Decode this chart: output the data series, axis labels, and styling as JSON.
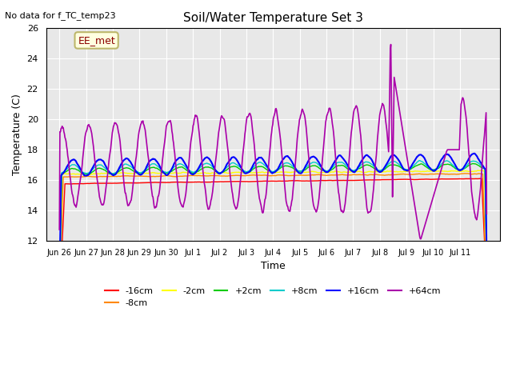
{
  "title": "Soil/Water Temperature Set 3",
  "subtitle": "No data for f_TC_temp23",
  "xlabel": "Time",
  "ylabel": "Temperature (C)",
  "ylim": [
    12,
    26
  ],
  "yticks": [
    12,
    14,
    16,
    18,
    20,
    22,
    24,
    26
  ],
  "xtick_labels": [
    "Jun 26",
    "Jun 27",
    "Jun 28",
    "Jun 29",
    "Jun 30",
    "Jul 1",
    "Jul 2",
    "Jul 3",
    "Jul 4",
    "Jul 5",
    "Jul 6",
    "Jul 7",
    "Jul 8",
    "Jul 9",
    "Jul 10",
    "Jul 11"
  ],
  "legend_labels": [
    "-16cm",
    "-8cm",
    "-2cm",
    "+2cm",
    "+8cm",
    "+16cm",
    "+64cm"
  ],
  "legend_colors": [
    "#ff0000",
    "#ff8800",
    "#ffff00",
    "#00cc00",
    "#00cccc",
    "#0000ff",
    "#aa00aa"
  ],
  "annotation_label": "EE_met",
  "plot_bg_color": "#e8e8e8",
  "n_days": 16,
  "n_points_per_day": 48
}
